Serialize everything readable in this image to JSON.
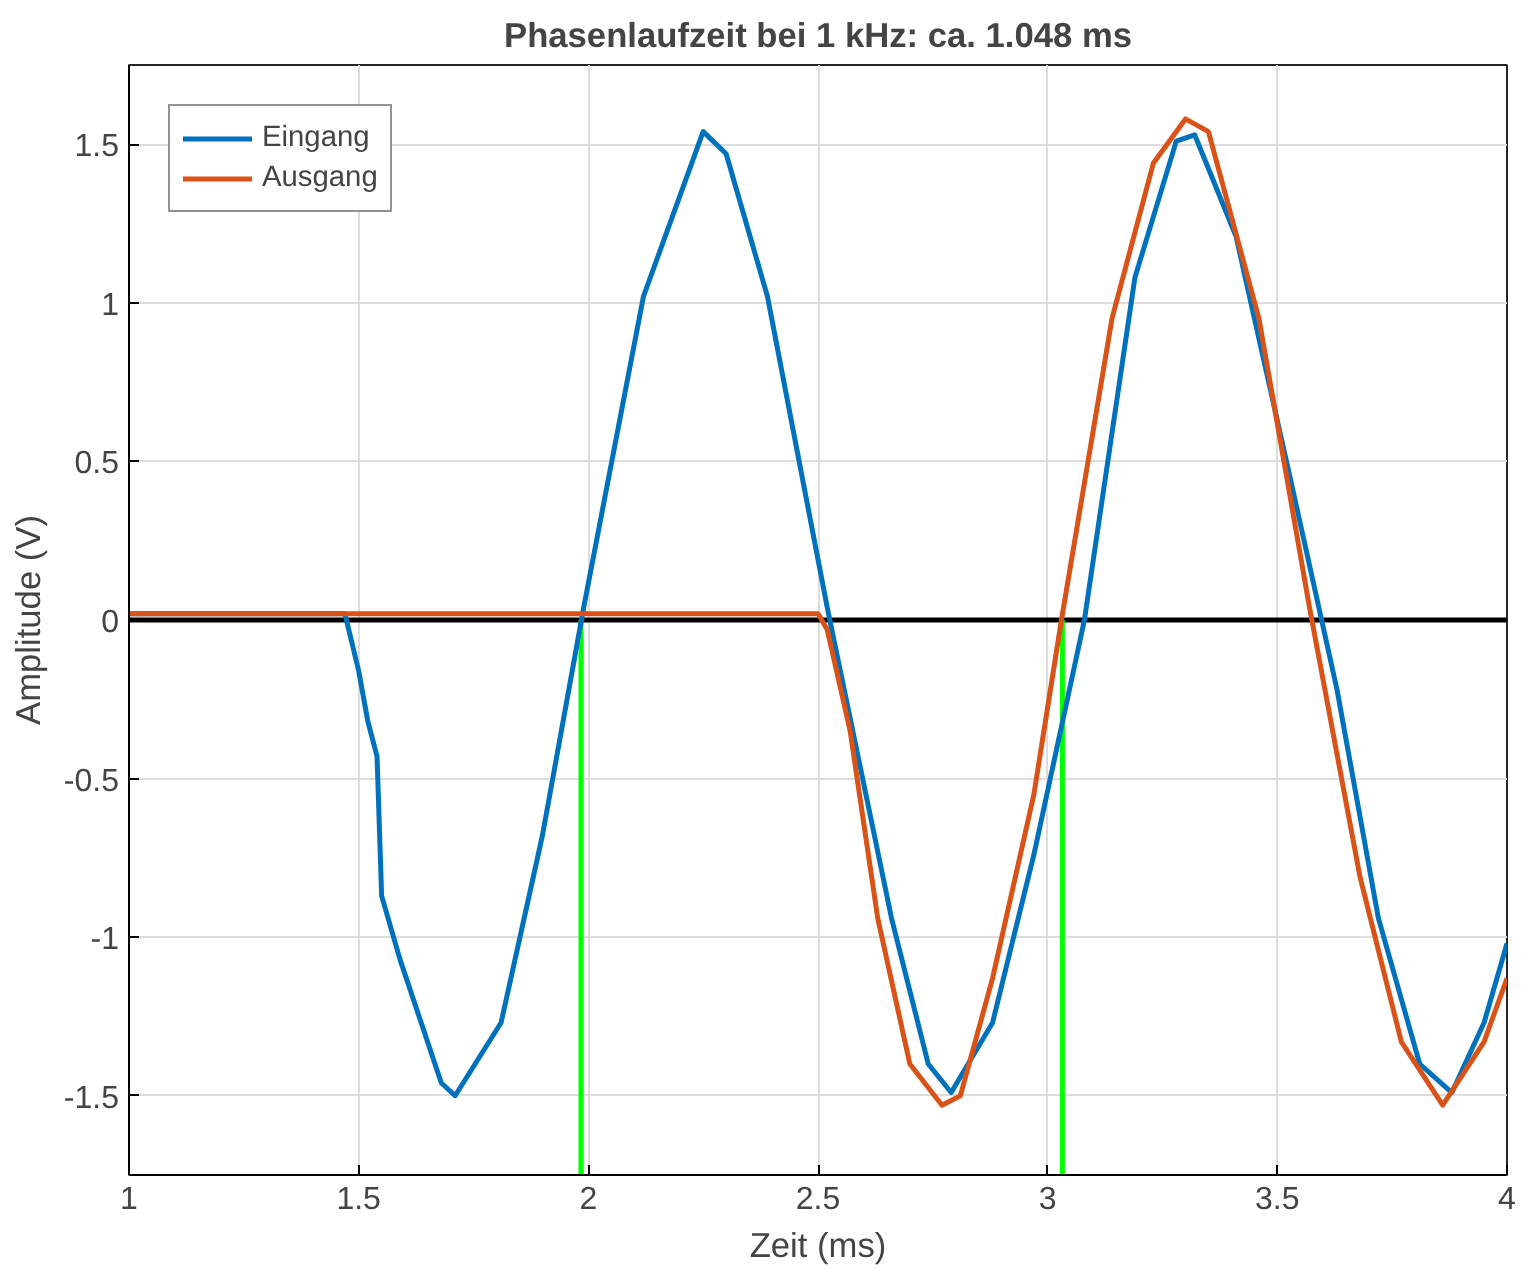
{
  "chart_data": {
    "type": "line",
    "title": "Phasenlaufzeit bei 1 kHz: ca. 1.048 ms",
    "xlabel": "Zeit (ms)",
    "ylabel": "Amplitude (V)",
    "xlim": [
      1,
      4
    ],
    "ylim": [
      -1.75,
      1.75
    ],
    "xticks": [
      1,
      1.5,
      2,
      2.5,
      3,
      3.5,
      4
    ],
    "yticks": [
      -1.5,
      -1,
      -0.5,
      0,
      0.5,
      1,
      1.5
    ],
    "grid": true,
    "legend": "top left",
    "line_style": "solid",
    "marker": "none",
    "series": [
      {
        "name": "Eingang",
        "color": "#0072bd",
        "x": [
          1,
          1.2,
          1.47,
          1.5,
          1.52,
          1.54,
          1.55,
          1.59,
          1.68,
          1.71,
          1.81,
          1.9,
          1.99,
          2.12,
          2.25,
          2.3,
          2.39,
          2.52,
          2.66,
          2.74,
          2.79,
          2.88,
          2.97,
          3.08,
          3.19,
          3.28,
          3.32,
          3.41,
          3.52,
          3.63,
          3.72,
          3.81,
          3.88,
          3.95,
          4
        ],
        "values": [
          0.02,
          0.02,
          0.02,
          -0.16,
          -0.32,
          -0.43,
          -0.87,
          -1.07,
          -1.46,
          -1.5,
          -1.27,
          -0.68,
          0.04,
          1.02,
          1.54,
          1.47,
          1.02,
          0.04,
          -0.94,
          -1.4,
          -1.49,
          -1.27,
          -0.74,
          0,
          1.08,
          1.51,
          1.53,
          1.21,
          0.5,
          -0.22,
          -0.94,
          -1.4,
          -1.49,
          -1.27,
          -1.02
        ]
      },
      {
        "name": "Ausgang",
        "color": "#d95319",
        "x": [
          1,
          1.5,
          2,
          2.5,
          2.52,
          2.57,
          2.63,
          2.7,
          2.77,
          2.81,
          2.88,
          2.97,
          3.03,
          3.14,
          3.23,
          3.3,
          3.35,
          3.46,
          3.57,
          3.68,
          3.77,
          3.86,
          3.95,
          4
        ],
        "values": [
          0.02,
          0.02,
          0.02,
          0.02,
          -0.03,
          -0.35,
          -0.94,
          -1.4,
          -1.53,
          -1.5,
          -1.13,
          -0.55,
          0,
          0.95,
          1.44,
          1.58,
          1.54,
          0.95,
          0.04,
          -0.81,
          -1.33,
          -1.53,
          -1.33,
          -1.13
        ]
      }
    ],
    "ref_lines": [
      {
        "axis": "y",
        "value": 0,
        "color": "#000000"
      },
      {
        "axis": "x",
        "value": 1.984,
        "color": "#00ff00"
      },
      {
        "axis": "x",
        "value": 3.032,
        "color": "#00ff00"
      }
    ]
  }
}
